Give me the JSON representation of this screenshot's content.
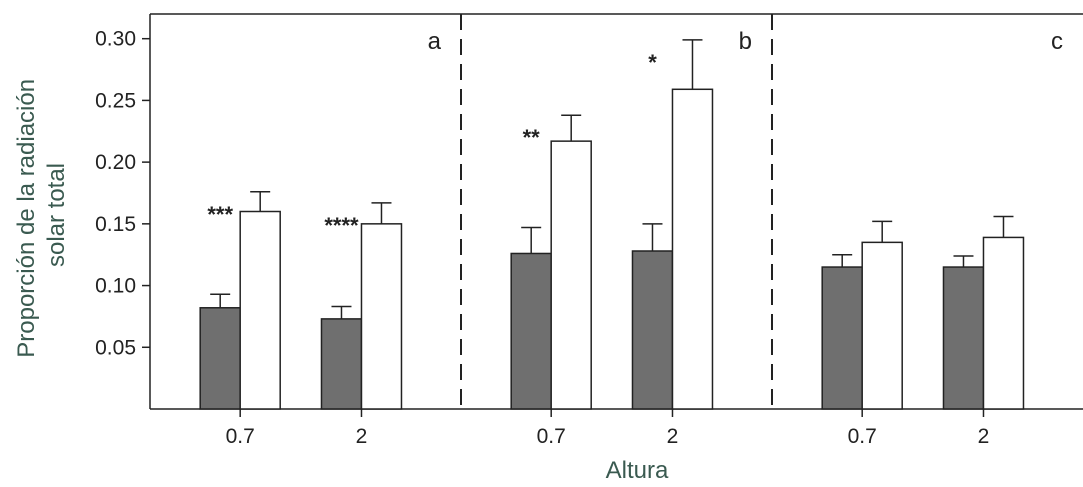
{
  "chart_data": {
    "type": "bar",
    "xlabel": "Altura",
    "ylabel_lines": [
      "Proporción de la radiación",
      "solar total"
    ],
    "ylim": [
      0,
      0.32
    ],
    "yticks": [
      "0.05",
      "0.10",
      "0.15",
      "0.20",
      "0.25",
      "0.30"
    ],
    "ytick_values": [
      0.05,
      0.1,
      0.15,
      0.2,
      0.25,
      0.3
    ],
    "series_colors": [
      "#6f6f6f",
      "#ffffff"
    ],
    "panels": [
      {
        "label": "a",
        "groups": [
          {
            "x": "0.7",
            "values": [
              0.082,
              0.16
            ],
            "errors": [
              0.011,
              0.016
            ],
            "significance": "***"
          },
          {
            "x": "2",
            "values": [
              0.073,
              0.15
            ],
            "errors": [
              0.01,
              0.017
            ],
            "significance": "****"
          }
        ]
      },
      {
        "label": "b",
        "groups": [
          {
            "x": "0.7",
            "values": [
              0.126,
              0.217
            ],
            "errors": [
              0.021,
              0.021
            ],
            "significance": "**"
          },
          {
            "x": "2",
            "values": [
              0.128,
              0.259
            ],
            "errors": [
              0.022,
              0.04
            ],
            "significance": "*"
          }
        ]
      },
      {
        "label": "c",
        "groups": [
          {
            "x": "0.7",
            "values": [
              0.115,
              0.135
            ],
            "errors": [
              0.01,
              0.017
            ],
            "significance": ""
          },
          {
            "x": "2",
            "values": [
              0.115,
              0.139
            ],
            "errors": [
              0.009,
              0.017
            ],
            "significance": ""
          }
        ]
      }
    ]
  }
}
